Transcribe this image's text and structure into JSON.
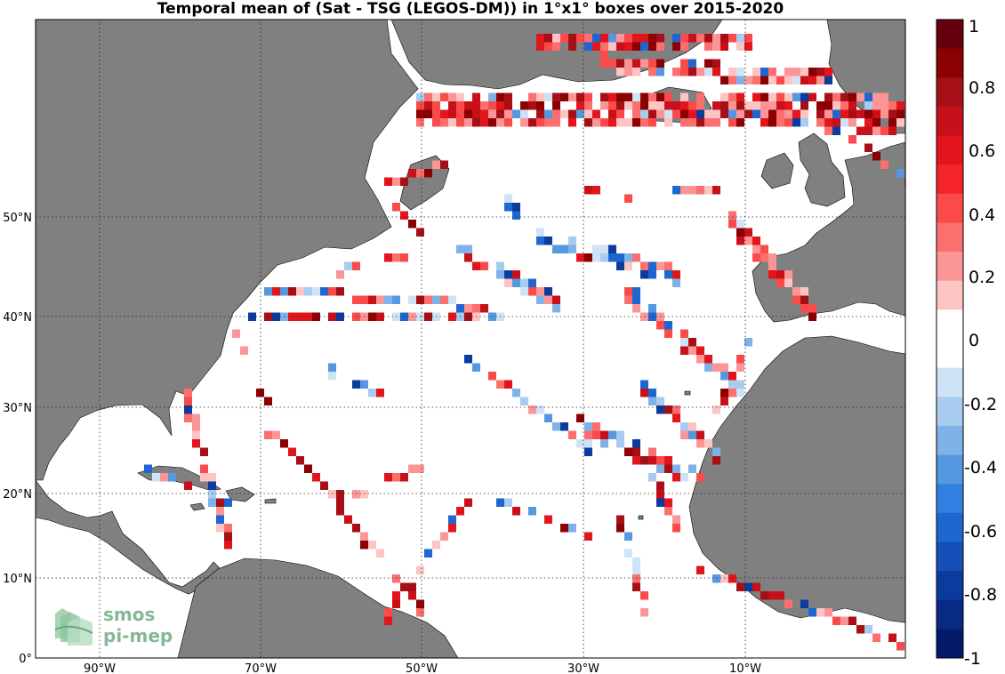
{
  "title": "Temporal mean of (Sat - TSG (LEGOS-DM)) in 1°x1° boxes over 2015-2020",
  "lon_ticks": [
    "90°W",
    "70°W",
    "50°W",
    "30°W",
    "10°W"
  ],
  "lat_ticks": [
    "0°",
    "10°N",
    "20°N",
    "30°N",
    "40°N",
    "50°N"
  ],
  "colorbar": {
    "ticks": [
      "1",
      "0.8",
      "0.6",
      "0.4",
      "0.2",
      "0",
      "-0.2",
      "-0.4",
      "-0.6",
      "-0.8",
      "-1"
    ],
    "colors": [
      "#67000d",
      "#8b0000",
      "#a50f15",
      "#c8101a",
      "#e2141c",
      "#f5242a",
      "#fb4a4a",
      "#fb6f6f",
      "#fc9696",
      "#fdc4c4",
      "#ffffff",
      "#ffffff",
      "#cfe3f7",
      "#a8ccef",
      "#7fb2e8",
      "#5598e0",
      "#2f80e0",
      "#1e66d0",
      "#1450b8",
      "#0c3b9e",
      "#082a84",
      "#041b6a"
    ]
  },
  "logo": {
    "line1": "smos",
    "line2": "pi-mep"
  },
  "colors": {
    "land": "#808080",
    "ocean": "#ffffff"
  }
}
